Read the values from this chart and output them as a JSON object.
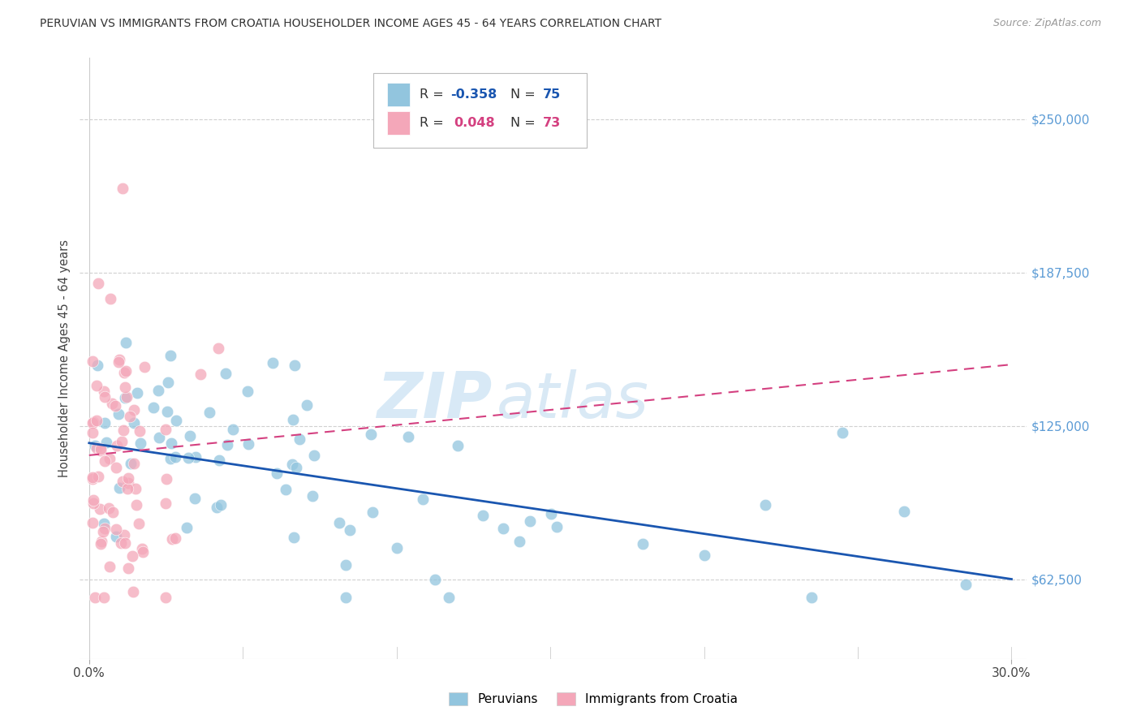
{
  "title": "PERUVIAN VS IMMIGRANTS FROM CROATIA HOUSEHOLDER INCOME AGES 45 - 64 YEARS CORRELATION CHART",
  "source": "Source: ZipAtlas.com",
  "ylabel": "Householder Income Ages 45 - 64 years",
  "yticks": [
    62500,
    125000,
    187500,
    250000
  ],
  "ytick_labels": [
    "$62,500",
    "$125,000",
    "$187,500",
    "$250,000"
  ],
  "xlim": [
    -0.003,
    0.305
  ],
  "ylim": [
    30000,
    275000
  ],
  "color_blue": "#92c5de",
  "color_pink": "#f4a7b9",
  "trendline_blue": "#1a56b0",
  "trendline_pink": "#d44080",
  "watermark_zip": "ZIP",
  "watermark_atlas": "atlas",
  "background_color": "#ffffff",
  "grid_color": "#d0d0d0",
  "ytick_color": "#5b9bd5",
  "legend_r1_label": "R = ",
  "legend_r1_val": "-0.358",
  "legend_n1_label": "  N = ",
  "legend_n1_val": "75",
  "legend_r2_label": "R =  ",
  "legend_r2_val": "0.048",
  "legend_n2_label": "  N = ",
  "legend_n2_val": "73",
  "legend_color_r": "#1a56b0",
  "legend_color_pink_r": "#d44080"
}
